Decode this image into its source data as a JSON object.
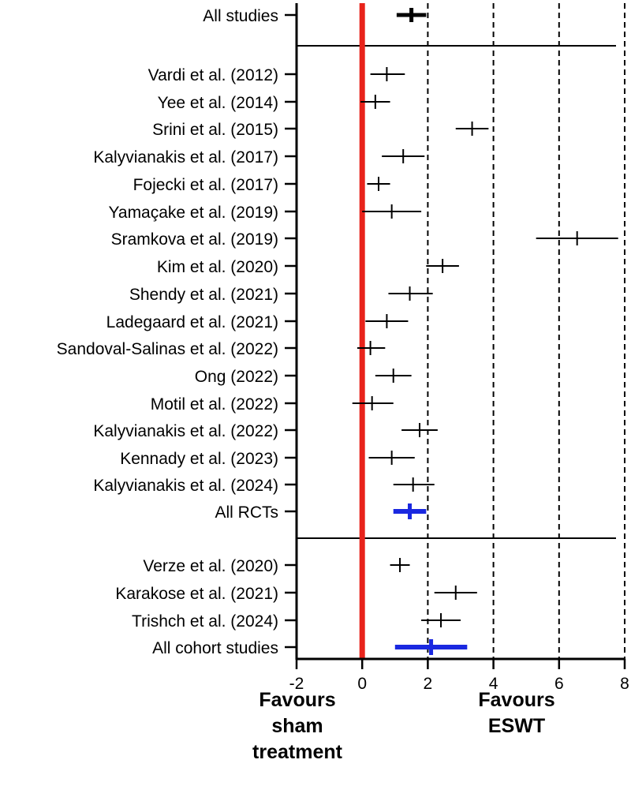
{
  "chart_data": {
    "type": "forest",
    "xlim": [
      -2,
      8
    ],
    "x_ticks": [
      "-2",
      "0",
      "2",
      "4",
      "6",
      "8"
    ],
    "tick_values": [
      -2,
      0,
      2,
      4,
      6,
      8
    ],
    "reference_line": 0,
    "dashed_gridlines": [
      2,
      4,
      6,
      8
    ],
    "colors": {
      "reference": "#e8231b",
      "pooled_subgroup": "#1a28e0",
      "estimate": "#000000"
    },
    "left_annotation": [
      "Favours",
      "sham",
      "treatment"
    ],
    "right_annotation": [
      "Favours",
      "ESWT"
    ],
    "groups": [
      {
        "name": "overall",
        "studies": [
          {
            "label": "All studies",
            "estimate": 1.5,
            "ci_low": 1.05,
            "ci_high": 1.95,
            "style": "pooled-black"
          }
        ]
      },
      {
        "name": "RCTs",
        "studies": [
          {
            "label": "Vardi et al. (2012)",
            "estimate": 0.75,
            "ci_low": 0.25,
            "ci_high": 1.3,
            "style": "study"
          },
          {
            "label": "Yee et al. (2014)",
            "estimate": 0.4,
            "ci_low": -0.05,
            "ci_high": 0.85,
            "style": "study"
          },
          {
            "label": "Srini et al. (2015)",
            "estimate": 3.35,
            "ci_low": 2.85,
            "ci_high": 3.85,
            "style": "study"
          },
          {
            "label": "Kalyvianakis et al. (2017)",
            "estimate": 1.25,
            "ci_low": 0.6,
            "ci_high": 1.9,
            "style": "study"
          },
          {
            "label": "Fojecki et al. (2017)",
            "estimate": 0.5,
            "ci_low": 0.15,
            "ci_high": 0.85,
            "style": "study"
          },
          {
            "label": "Yamaçake et al. (2019)",
            "estimate": 0.9,
            "ci_low": 0.0,
            "ci_high": 1.8,
            "style": "study"
          },
          {
            "label": "Sramkova et al. (2019)",
            "estimate": 6.55,
            "ci_low": 5.3,
            "ci_high": 7.8,
            "style": "study"
          },
          {
            "label": "Kim et al. (2020)",
            "estimate": 2.45,
            "ci_low": 1.95,
            "ci_high": 2.95,
            "style": "study"
          },
          {
            "label": "Shendy et al. (2021)",
            "estimate": 1.45,
            "ci_low": 0.8,
            "ci_high": 2.15,
            "style": "study"
          },
          {
            "label": "Ladegaard et al. (2021)",
            "estimate": 0.75,
            "ci_low": 0.1,
            "ci_high": 1.4,
            "style": "study"
          },
          {
            "label": "Sandoval-Salinas et al. (2022)",
            "estimate": 0.25,
            "ci_low": -0.15,
            "ci_high": 0.7,
            "style": "study"
          },
          {
            "label": "Ong (2022)",
            "estimate": 0.95,
            "ci_low": 0.4,
            "ci_high": 1.5,
            "style": "study"
          },
          {
            "label": "Motil et al. (2022)",
            "estimate": 0.3,
            "ci_low": -0.3,
            "ci_high": 0.95,
            "style": "study"
          },
          {
            "label": "Kalyvianakis et al. (2022)",
            "estimate": 1.75,
            "ci_low": 1.2,
            "ci_high": 2.3,
            "style": "study"
          },
          {
            "label": "Kennady et al. (2023)",
            "estimate": 0.9,
            "ci_low": 0.2,
            "ci_high": 1.6,
            "style": "study"
          },
          {
            "label": "Kalyvianakis et al. (2024)",
            "estimate": 1.55,
            "ci_low": 0.95,
            "ci_high": 2.2,
            "style": "study"
          },
          {
            "label": "All RCTs",
            "estimate": 1.45,
            "ci_low": 0.95,
            "ci_high": 1.95,
            "style": "pooled-blue"
          }
        ]
      },
      {
        "name": "cohort",
        "studies": [
          {
            "label": "Verze et al. (2020)",
            "estimate": 1.15,
            "ci_low": 0.85,
            "ci_high": 1.45,
            "style": "study"
          },
          {
            "label": "Karakose et al. (2021)",
            "estimate": 2.85,
            "ci_low": 2.2,
            "ci_high": 3.5,
            "style": "study"
          },
          {
            "label": "Trishch et al. (2024)",
            "estimate": 2.4,
            "ci_low": 1.8,
            "ci_high": 3.0,
            "style": "study"
          },
          {
            "label": "All cohort studies",
            "estimate": 2.1,
            "ci_low": 1.0,
            "ci_high": 3.2,
            "style": "pooled-blue"
          }
        ]
      }
    ]
  }
}
